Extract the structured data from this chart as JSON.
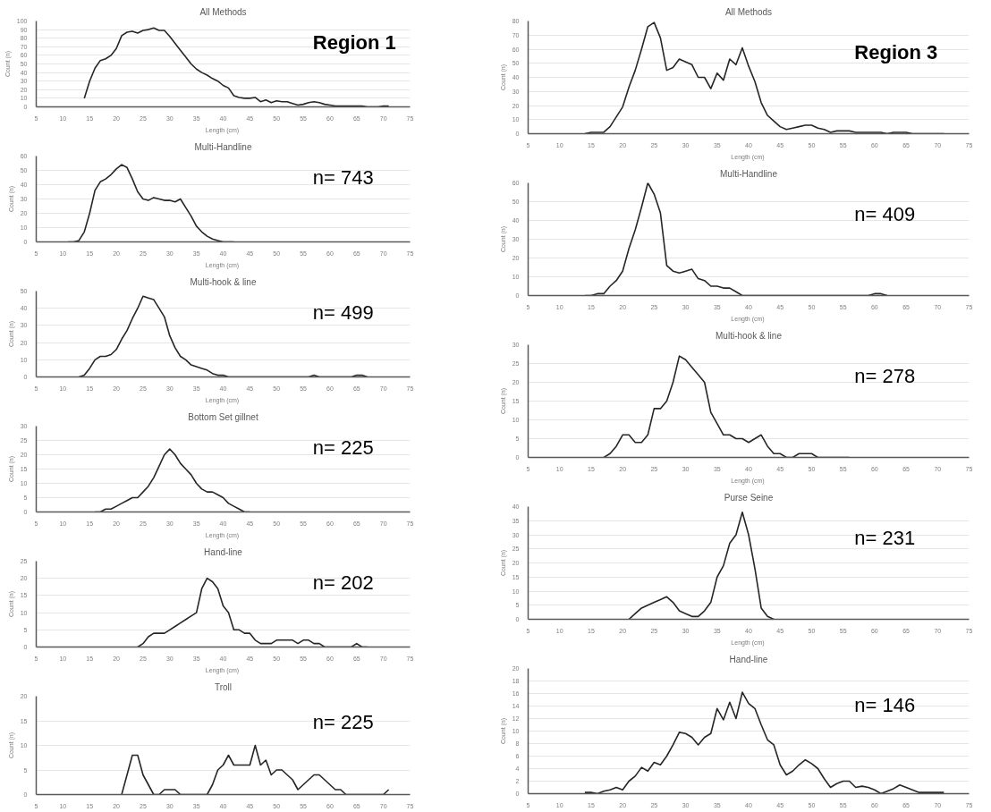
{
  "chart_data": [
    {
      "type": "line",
      "title": "All Methods",
      "xlabel": "Length  (cm)",
      "ylabel": "Count (n)",
      "xlim": [
        5,
        75
      ],
      "xticks": [
        5,
        10,
        15,
        20,
        25,
        30,
        35,
        40,
        45,
        50,
        55,
        60,
        65,
        70,
        75
      ],
      "ylim": [
        0,
        100
      ],
      "yticks": [
        0,
        10,
        20,
        30,
        40,
        50,
        60,
        70,
        80,
        90,
        100
      ],
      "grid": "y",
      "annotations": [
        "Region 1"
      ],
      "series": [
        {
          "color": "#262626",
          "x": [
            14,
            15,
            16,
            17,
            18,
            19,
            20,
            21,
            22,
            23,
            24,
            25,
            26,
            27,
            28,
            29,
            30,
            31,
            32,
            33,
            34,
            35,
            36,
            37,
            38,
            39,
            40,
            41,
            42,
            43,
            44,
            45,
            46,
            47,
            48,
            49,
            50,
            51,
            52,
            53,
            54,
            55,
            56,
            57,
            58,
            59,
            60,
            61,
            62,
            63,
            64,
            65,
            66,
            67,
            68,
            69,
            70,
            71
          ],
          "values": [
            10,
            30,
            45,
            54,
            56,
            60,
            68,
            83,
            87,
            88,
            86,
            89,
            90,
            92,
            89,
            89,
            82,
            74,
            66,
            58,
            50,
            44,
            40,
            37,
            33,
            30,
            25,
            22,
            13,
            11,
            10,
            10,
            11,
            6,
            8,
            5,
            7,
            6,
            6,
            4,
            2,
            3,
            5,
            6,
            5,
            3,
            2,
            1,
            1,
            1,
            1,
            1,
            1,
            0,
            0,
            0,
            1,
            1
          ]
        }
      ]
    },
    {
      "type": "line",
      "title": "Multi-Handline",
      "xlabel": "Length  (cm)",
      "ylabel": "Count (n)",
      "xlim": [
        5,
        75
      ],
      "xticks": [
        5,
        10,
        15,
        20,
        25,
        30,
        35,
        40,
        45,
        50,
        55,
        60,
        65,
        70,
        75
      ],
      "ylim": [
        0,
        60
      ],
      "yticks": [
        0,
        10,
        20,
        30,
        40,
        50,
        60
      ],
      "grid": "y",
      "annotations": [
        "n= 743"
      ],
      "series": [
        {
          "color": "#262626",
          "x": [
            11,
            12,
            13,
            14,
            15,
            16,
            17,
            18,
            19,
            20,
            21,
            22,
            23,
            24,
            25,
            26,
            27,
            28,
            29,
            30,
            31,
            32,
            33,
            34,
            35,
            36,
            37,
            38,
            39,
            40,
            41,
            42
          ],
          "values": [
            0,
            0,
            1,
            7,
            20,
            36,
            42,
            44,
            47,
            51,
            54,
            52,
            44,
            35,
            30,
            29,
            31,
            30,
            29,
            29,
            28,
            30,
            24,
            18,
            11,
            7,
            4,
            2,
            1,
            0,
            0,
            0
          ]
        }
      ]
    },
    {
      "type": "line",
      "title": "Multi-hook & line",
      "xlabel": "Length  (cm)",
      "ylabel": "Count (n)",
      "xlim": [
        5,
        75
      ],
      "xticks": [
        5,
        10,
        15,
        20,
        25,
        30,
        35,
        40,
        45,
        50,
        55,
        60,
        65,
        70,
        75
      ],
      "ylim": [
        0,
        50
      ],
      "yticks": [
        0,
        10,
        20,
        30,
        40,
        50
      ],
      "grid": "y",
      "annotations": [
        "n= 499"
      ],
      "series": [
        {
          "color": "#262626",
          "x": [
            13,
            14,
            15,
            16,
            17,
            18,
            19,
            20,
            21,
            22,
            23,
            24,
            25,
            26,
            27,
            28,
            29,
            30,
            31,
            32,
            33,
            34,
            35,
            36,
            37,
            38,
            39,
            40,
            41,
            45,
            50,
            55,
            56,
            57,
            58,
            60,
            64,
            65,
            66,
            67
          ],
          "values": [
            0,
            1,
            5,
            10,
            12,
            12,
            13,
            16,
            22,
            27,
            34,
            40,
            47,
            46,
            45,
            40,
            35,
            24,
            17,
            12,
            10,
            7,
            6,
            5,
            4,
            2,
            1,
            1,
            0,
            0,
            0,
            0,
            0,
            1,
            0,
            0,
            0,
            1,
            1,
            0
          ]
        }
      ]
    },
    {
      "type": "line",
      "title": "Bottom Set gillnet",
      "xlabel": "Length  (cm)",
      "ylabel": "Count (n)",
      "xlim": [
        5,
        75
      ],
      "xticks": [
        5,
        10,
        15,
        20,
        25,
        30,
        35,
        40,
        45,
        50,
        55,
        60,
        65,
        70,
        75
      ],
      "ylim": [
        0,
        30
      ],
      "yticks": [
        0,
        5,
        10,
        15,
        20,
        25,
        30
      ],
      "grid": "y",
      "annotations": [
        "n= 225"
      ],
      "series": [
        {
          "color": "#262626",
          "x": [
            16,
            17,
            18,
            19,
            20,
            21,
            22,
            23,
            24,
            25,
            26,
            27,
            28,
            29,
            30,
            31,
            32,
            33,
            34,
            35,
            36,
            37,
            38,
            39,
            40,
            41,
            42,
            43,
            44,
            45
          ],
          "values": [
            0,
            0,
            1,
            1,
            2,
            3,
            4,
            5,
            5,
            7,
            9,
            12,
            16,
            20,
            22,
            20,
            17,
            15,
            13,
            10,
            8,
            7,
            7,
            6,
            5,
            3,
            2,
            1,
            0,
            0
          ]
        }
      ]
    },
    {
      "type": "line",
      "title": "Hand-line",
      "xlabel": "Length  (cm)",
      "ylabel": "Count (n)",
      "xlim": [
        5,
        75
      ],
      "xticks": [
        5,
        10,
        15,
        20,
        25,
        30,
        35,
        40,
        45,
        50,
        55,
        60,
        65,
        70,
        75
      ],
      "ylim": [
        0,
        25
      ],
      "yticks": [
        0,
        5,
        10,
        15,
        20,
        25
      ],
      "grid": "y",
      "annotations": [
        "n= 202"
      ],
      "series": [
        {
          "color": "#262626",
          "x": [
            24,
            25,
            26,
            27,
            28,
            29,
            30,
            31,
            32,
            33,
            34,
            35,
            36,
            37,
            38,
            39,
            40,
            41,
            42,
            43,
            44,
            45,
            46,
            47,
            48,
            49,
            50,
            51,
            52,
            53,
            54,
            55,
            56,
            57,
            58,
            59,
            60,
            64,
            65,
            66,
            67
          ],
          "values": [
            0,
            1,
            3,
            4,
            4,
            4,
            5,
            6,
            7,
            8,
            9,
            10,
            17,
            20,
            19,
            17,
            12,
            10,
            5,
            5,
            4,
            4,
            2,
            1,
            1,
            1,
            2,
            2,
            2,
            2,
            1,
            2,
            2,
            1,
            1,
            0,
            0,
            0,
            1,
            0,
            0
          ]
        }
      ]
    },
    {
      "type": "line",
      "title": "Troll",
      "ylabel": "Count (n)",
      "xlim": [
        5,
        75
      ],
      "xticks": [
        5,
        10,
        15,
        20,
        25,
        30,
        35,
        40,
        45,
        50,
        55,
        60,
        65,
        70,
        75
      ],
      "ylim": [
        0,
        20
      ],
      "yticks": [
        0,
        5,
        10,
        15,
        20
      ],
      "grid": "y",
      "annotations": [
        "n= 225"
      ],
      "series": [
        {
          "color": "#262626",
          "x": [
            21,
            22,
            23,
            24,
            25,
            26,
            27,
            28,
            29,
            30,
            31,
            32,
            37,
            38,
            39,
            40,
            41,
            42,
            43,
            44,
            45,
            46,
            47,
            48,
            49,
            50,
            51,
            52,
            53,
            54,
            55,
            56,
            57,
            58,
            59,
            60,
            61,
            62,
            63,
            69,
            70,
            71
          ],
          "values": [
            0,
            4,
            8,
            8,
            4,
            2,
            0,
            0,
            1,
            1,
            1,
            0,
            0,
            2,
            5,
            6,
            8,
            6,
            6,
            6,
            6,
            10,
            6,
            7,
            4,
            5,
            5,
            4,
            3,
            1,
            2,
            3,
            4,
            4,
            3,
            2,
            1,
            1,
            0,
            0,
            0,
            1
          ]
        }
      ]
    },
    {
      "type": "line",
      "title": "All Methods",
      "xlabel": "Length  (cm)",
      "ylabel": "Count (n)",
      "xlim": [
        5,
        75
      ],
      "xticks": [
        5,
        10,
        15,
        20,
        25,
        30,
        35,
        40,
        45,
        50,
        55,
        60,
        65,
        70,
        75
      ],
      "ylim": [
        0,
        80
      ],
      "yticks": [
        0,
        10,
        20,
        30,
        40,
        50,
        60,
        70,
        80
      ],
      "grid": "y",
      "annotations": [
        "Region 3"
      ],
      "series": [
        {
          "color": "#262626",
          "x": [
            14,
            15,
            16,
            17,
            18,
            19,
            20,
            21,
            22,
            23,
            24,
            25,
            26,
            27,
            28,
            29,
            30,
            31,
            32,
            33,
            34,
            35,
            36,
            37,
            38,
            39,
            40,
            41,
            42,
            43,
            44,
            45,
            46,
            47,
            48,
            49,
            50,
            51,
            52,
            53,
            54,
            55,
            56,
            57,
            58,
            59,
            60,
            61,
            62,
            63,
            64,
            65,
            66,
            67,
            68,
            69,
            70,
            71
          ],
          "values": [
            0,
            1,
            1,
            1,
            5,
            12,
            19,
            33,
            45,
            60,
            76,
            79,
            68,
            45,
            47,
            53,
            51,
            49,
            40,
            40,
            32,
            43,
            38,
            53,
            49,
            61,
            48,
            37,
            22,
            13,
            9,
            5,
            3,
            4,
            5,
            6,
            6,
            4,
            3,
            1,
            2,
            2,
            2,
            1,
            1,
            1,
            1,
            1,
            0,
            1,
            1,
            1,
            0,
            0,
            0,
            0,
            0,
            0
          ]
        }
      ]
    },
    {
      "type": "line",
      "title": "Multi-Handline",
      "xlabel": "Length  (cm)",
      "ylabel": "Count (n)",
      "xlim": [
        5,
        75
      ],
      "xticks": [
        5,
        10,
        15,
        20,
        25,
        30,
        35,
        40,
        45,
        50,
        55,
        60,
        65,
        70,
        75
      ],
      "ylim": [
        0,
        60
      ],
      "yticks": [
        0,
        10,
        20,
        30,
        40,
        50,
        60
      ],
      "grid": "y",
      "annotations": [
        "n= 409"
      ],
      "series": [
        {
          "color": "#262626",
          "x": [
            14,
            15,
            16,
            17,
            18,
            19,
            20,
            21,
            22,
            23,
            24,
            25,
            26,
            27,
            28,
            29,
            30,
            31,
            32,
            33,
            34,
            35,
            36,
            37,
            38,
            39,
            40,
            45,
            50,
            55,
            59,
            60,
            61,
            62
          ],
          "values": [
            0,
            0,
            1,
            1,
            5,
            8,
            13,
            25,
            35,
            47,
            60,
            54,
            44,
            16,
            13,
            12,
            13,
            14,
            9,
            8,
            5,
            5,
            4,
            4,
            2,
            0,
            0,
            0,
            0,
            0,
            0,
            1,
            1,
            0
          ]
        }
      ]
    },
    {
      "type": "line",
      "title": "Multi-hook & line",
      "xlabel": "Length  (cm)",
      "ylabel": "Count (n)",
      "xlim": [
        5,
        75
      ],
      "xticks": [
        5,
        10,
        15,
        20,
        25,
        30,
        35,
        40,
        45,
        50,
        55,
        60,
        65,
        70,
        75
      ],
      "ylim": [
        0,
        30
      ],
      "yticks": [
        0,
        5,
        10,
        15,
        20,
        25,
        30
      ],
      "grid": "y",
      "annotations": [
        "n= 278"
      ],
      "series": [
        {
          "color": "#262626",
          "x": [
            17,
            18,
            19,
            20,
            21,
            22,
            23,
            24,
            25,
            26,
            27,
            28,
            29,
            30,
            31,
            32,
            33,
            34,
            35,
            36,
            37,
            38,
            39,
            40,
            41,
            42,
            43,
            44,
            45,
            46,
            47,
            48,
            49,
            50,
            51,
            52,
            53,
            54,
            55,
            56
          ],
          "values": [
            0,
            1,
            3,
            6,
            6,
            4,
            4,
            6,
            13,
            13,
            15,
            20,
            27,
            26,
            24,
            22,
            20,
            12,
            9,
            6,
            6,
            5,
            5,
            4,
            5,
            6,
            3,
            1,
            1,
            0,
            0,
            1,
            1,
            1,
            0,
            0,
            0,
            0,
            0,
            0
          ]
        }
      ]
    },
    {
      "type": "line",
      "title": "Purse Seine",
      "xlabel": "Length  (cm)",
      "ylabel": "Count (n)",
      "xlim": [
        5,
        75
      ],
      "xticks": [
        5,
        10,
        15,
        20,
        25,
        30,
        35,
        40,
        45,
        50,
        55,
        60,
        65,
        70,
        75
      ],
      "ylim": [
        0,
        40
      ],
      "yticks": [
        0,
        5,
        10,
        15,
        20,
        25,
        30,
        35,
        40
      ],
      "grid": "y",
      "annotations": [
        "n= 231"
      ],
      "series": [
        {
          "color": "#262626",
          "x": [
            21,
            22,
            23,
            24,
            25,
            26,
            27,
            28,
            29,
            30,
            31,
            32,
            33,
            34,
            35,
            36,
            37,
            38,
            39,
            40,
            41,
            42,
            43,
            44
          ],
          "values": [
            0,
            2,
            4,
            5,
            6,
            7,
            8,
            6,
            3,
            2,
            1,
            1,
            3,
            6,
            15,
            19,
            27,
            30,
            38,
            30,
            18,
            4,
            1,
            0
          ]
        }
      ]
    },
    {
      "type": "line",
      "title": "Hand-line",
      "ylabel": "Count (n)",
      "xlim": [
        5,
        75
      ],
      "xticks": [
        5,
        10,
        15,
        20,
        25,
        30,
        35,
        40,
        45,
        50,
        55,
        60,
        65,
        70,
        75
      ],
      "ylim": [
        0,
        20
      ],
      "yticks": [
        0,
        2,
        4,
        6,
        8,
        10,
        12,
        14,
        16,
        18,
        20
      ],
      "grid": "y",
      "annotations": [
        "n= 146"
      ],
      "series": [
        {
          "color": "#262626",
          "x": [
            14,
            15,
            16,
            17,
            18,
            19,
            20,
            21,
            22,
            23,
            24,
            25,
            26,
            27,
            28,
            29,
            30,
            31,
            32,
            33,
            34,
            35,
            36,
            37,
            38,
            39,
            40,
            41,
            42,
            43,
            44,
            45,
            46,
            47,
            48,
            49,
            50,
            51,
            52,
            53,
            54,
            55,
            56,
            57,
            58,
            59,
            60,
            61,
            62,
            63,
            64,
            65,
            66,
            67,
            68,
            69,
            70,
            71
          ],
          "values": [
            0.2,
            0.2,
            0,
            0.4,
            0.6,
            1,
            0.6,
            2,
            2.8,
            4.2,
            3.6,
            5,
            4.6,
            6,
            7.8,
            9.8,
            9.6,
            9,
            7.8,
            9,
            9.6,
            13.6,
            11.8,
            14.6,
            12,
            16.2,
            14.4,
            13.6,
            11,
            8.6,
            7.8,
            4.6,
            3,
            3.6,
            4.6,
            5.4,
            4.8,
            4,
            2.4,
            1,
            1.6,
            2,
            2,
            1,
            1.2,
            1,
            0.6,
            0,
            0.4,
            0.8,
            1.4,
            1,
            0.6,
            0.2,
            0.2,
            0.2,
            0.2,
            0.2
          ]
        }
      ]
    }
  ]
}
